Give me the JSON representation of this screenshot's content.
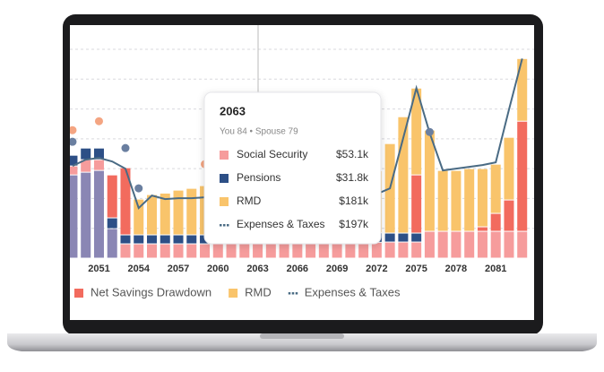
{
  "chart_data": {
    "type": "bar",
    "stacked": true,
    "x": [
      2049,
      2050,
      2051,
      2052,
      2053,
      2054,
      2055,
      2056,
      2057,
      2058,
      2059,
      2060,
      2061,
      2062,
      2063,
      2064,
      2065,
      2066,
      2067,
      2068,
      2069,
      2070,
      2071,
      2072,
      2073,
      2074,
      2075,
      2076,
      2077,
      2078,
      2079,
      2080,
      2081,
      2082,
      2083
    ],
    "xlim": [
      2048.8,
      2083.9
    ],
    "xticks": [
      2051,
      2054,
      2057,
      2060,
      2063,
      2066,
      2069,
      2072,
      2075,
      2078,
      2081
    ],
    "ylim": [
      0,
      700
    ],
    "yticks": [
      100,
      200,
      300,
      400,
      500,
      600,
      700
    ],
    "grid": true,
    "series": [
      {
        "color": "#8a86b4",
        "legend": false,
        "values": [
          279,
          288,
          294,
          99,
          0,
          0,
          0,
          0,
          0,
          0,
          0,
          0,
          0,
          0,
          0,
          0,
          0,
          0,
          0,
          0,
          0,
          0,
          0,
          0,
          0,
          0,
          0,
          0,
          0,
          0,
          0,
          0,
          0,
          0,
          0
        ]
      },
      {
        "name": "Social Security",
        "color": "#f69c9c",
        "legend": false,
        "values": [
          30,
          42,
          36,
          0,
          48,
          48,
          48,
          48,
          48,
          48,
          48,
          53.1,
          53.1,
          53.1,
          53.1,
          53.1,
          53.1,
          53.1,
          53.1,
          53.1,
          53.1,
          53.1,
          53.1,
          53.1,
          54,
          54,
          54,
          90,
          90,
          90,
          90,
          90,
          90,
          90,
          90
        ]
      },
      {
        "name": "Pensions",
        "color": "#2d4f86",
        "legend": false,
        "values": [
          36,
          39,
          39,
          36,
          30,
          30,
          30,
          30,
          30,
          30,
          30,
          31.8,
          31.8,
          31.8,
          31.8,
          31.8,
          31.8,
          31.8,
          31.8,
          31.8,
          31.8,
          31.8,
          31.8,
          31.8,
          30,
          30,
          30,
          0,
          0,
          0,
          0,
          0,
          0,
          0,
          0
        ]
      },
      {
        "name": "Net Savings Drawdown",
        "color": "#f26b5e",
        "legend": true,
        "values": [
          0,
          0,
          0,
          144,
          225,
          0,
          0,
          0,
          0,
          0,
          0,
          0,
          0,
          0,
          0,
          0,
          0,
          0,
          0,
          0,
          0,
          0,
          0,
          0,
          0,
          0,
          195,
          0,
          0,
          0,
          0,
          15,
          60,
          105,
          369
        ]
      },
      {
        "name": "RMD",
        "color": "#f9c46b",
        "legend": true,
        "values": [
          0,
          0,
          0,
          0,
          0,
          120,
          135,
          140,
          150,
          156,
          165,
          170,
          174,
          178,
          181,
          184,
          187,
          190,
          193,
          196,
          199,
          202,
          205,
          208,
          300,
          390,
          291,
          339,
          204,
          204,
          210,
          195,
          165,
          210,
          210
        ]
      },
      {
        "name": "Expenses & Taxes",
        "type": "line",
        "color": "#4a6b84",
        "legend": true,
        "values": [
          309,
          330,
          336,
          324,
          300,
          168,
          210,
          198,
          201,
          201,
          204,
          198,
          197,
          197,
          197,
          197,
          197,
          197,
          197,
          197,
          197,
          197,
          197,
          215,
          234,
          402,
          570,
          420,
          294,
          300,
          306,
          312,
          321,
          498,
          669
        ]
      }
    ],
    "markers": [
      {
        "color": "#f4a582",
        "x": [
          2049,
          2051,
          2059
        ],
        "values": [
          429,
          459,
          315
        ]
      },
      {
        "color": "#6a7fa0",
        "x": [
          2049,
          2053,
          2054,
          2076
        ],
        "values": [
          390,
          369,
          234,
          423
        ]
      }
    ],
    "tooltip": {
      "title": "2063",
      "subtitle": "You 84 • Spouse 79",
      "rows": [
        {
          "label": "Social Security",
          "value": "$53.1k"
        },
        {
          "label": "Pensions",
          "value": "$31.8k"
        },
        {
          "label": "RMD",
          "value": "$181k"
        },
        {
          "label": "Expenses & Taxes",
          "value": "$197k"
        }
      ]
    }
  }
}
